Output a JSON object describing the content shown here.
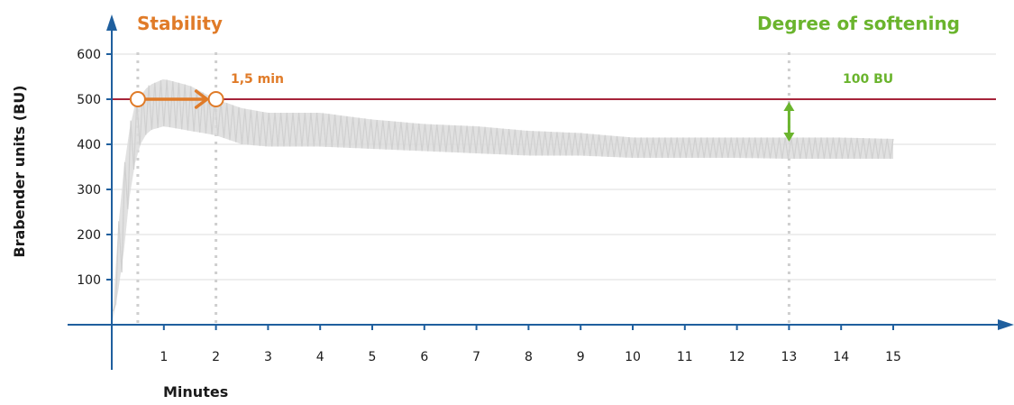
{
  "chart_data": {
    "type": "line",
    "xlabel": "Minutes",
    "ylabel": "Brabender units (BU)",
    "xlim": [
      0,
      16.5
    ],
    "ylim": [
      0,
      650
    ],
    "x_ticks": [
      1,
      2,
      3,
      4,
      5,
      6,
      7,
      8,
      9,
      10,
      11,
      12,
      13,
      14,
      15
    ],
    "y_ticks": [
      100,
      200,
      300,
      400,
      500,
      600
    ],
    "grid": "horizontal",
    "reference_line": {
      "y": 500,
      "color": "#a6243a"
    },
    "series": [
      {
        "color": "#dcdcdc",
        "band": [
          {
            "x": 0.02,
            "low": 10,
            "high": 30
          },
          {
            "x": 0.1,
            "low": 60,
            "high": 180
          },
          {
            "x": 0.2,
            "low": 120,
            "high": 320
          },
          {
            "x": 0.3,
            "low": 250,
            "high": 400
          },
          {
            "x": 0.4,
            "low": 330,
            "high": 480
          },
          {
            "x": 0.5,
            "low": 390,
            "high": 500
          },
          {
            "x": 0.7,
            "low": 430,
            "high": 530
          },
          {
            "x": 1.0,
            "low": 440,
            "high": 545
          },
          {
            "x": 1.5,
            "low": 430,
            "high": 530
          },
          {
            "x": 2.0,
            "low": 420,
            "high": 500
          },
          {
            "x": 2.5,
            "low": 400,
            "high": 480
          },
          {
            "x": 3.0,
            "low": 395,
            "high": 470
          },
          {
            "x": 4.0,
            "low": 395,
            "high": 470
          },
          {
            "x": 5.0,
            "low": 390,
            "high": 455
          },
          {
            "x": 6.0,
            "low": 385,
            "high": 445
          },
          {
            "x": 7.0,
            "low": 380,
            "high": 440
          },
          {
            "x": 8.0,
            "low": 375,
            "high": 430
          },
          {
            "x": 9.0,
            "low": 375,
            "high": 425
          },
          {
            "x": 10.0,
            "low": 370,
            "high": 415
          },
          {
            "x": 11.0,
            "low": 370,
            "high": 415
          },
          {
            "x": 12.0,
            "low": 370,
            "high": 415
          },
          {
            "x": 13.0,
            "low": 368,
            "high": 415
          },
          {
            "x": 14.0,
            "low": 368,
            "high": 415
          },
          {
            "x": 15.0,
            "low": 368,
            "high": 412
          }
        ]
      }
    ],
    "annotations": {
      "stability": {
        "label": "Stability",
        "color": "#e07b28",
        "x_start": 0.5,
        "x_end": 2.0,
        "y": 500,
        "duration_label": "1,5 min"
      },
      "softening": {
        "label": "Degree of softening",
        "color": "#6ab42d",
        "x": 13,
        "y_top": 500,
        "y_bottom": 400,
        "value_label": "100 BU"
      }
    },
    "colors": {
      "axis": "#1f5f9e",
      "grid": "#dddddd",
      "guide": "#cfcfcf"
    }
  }
}
